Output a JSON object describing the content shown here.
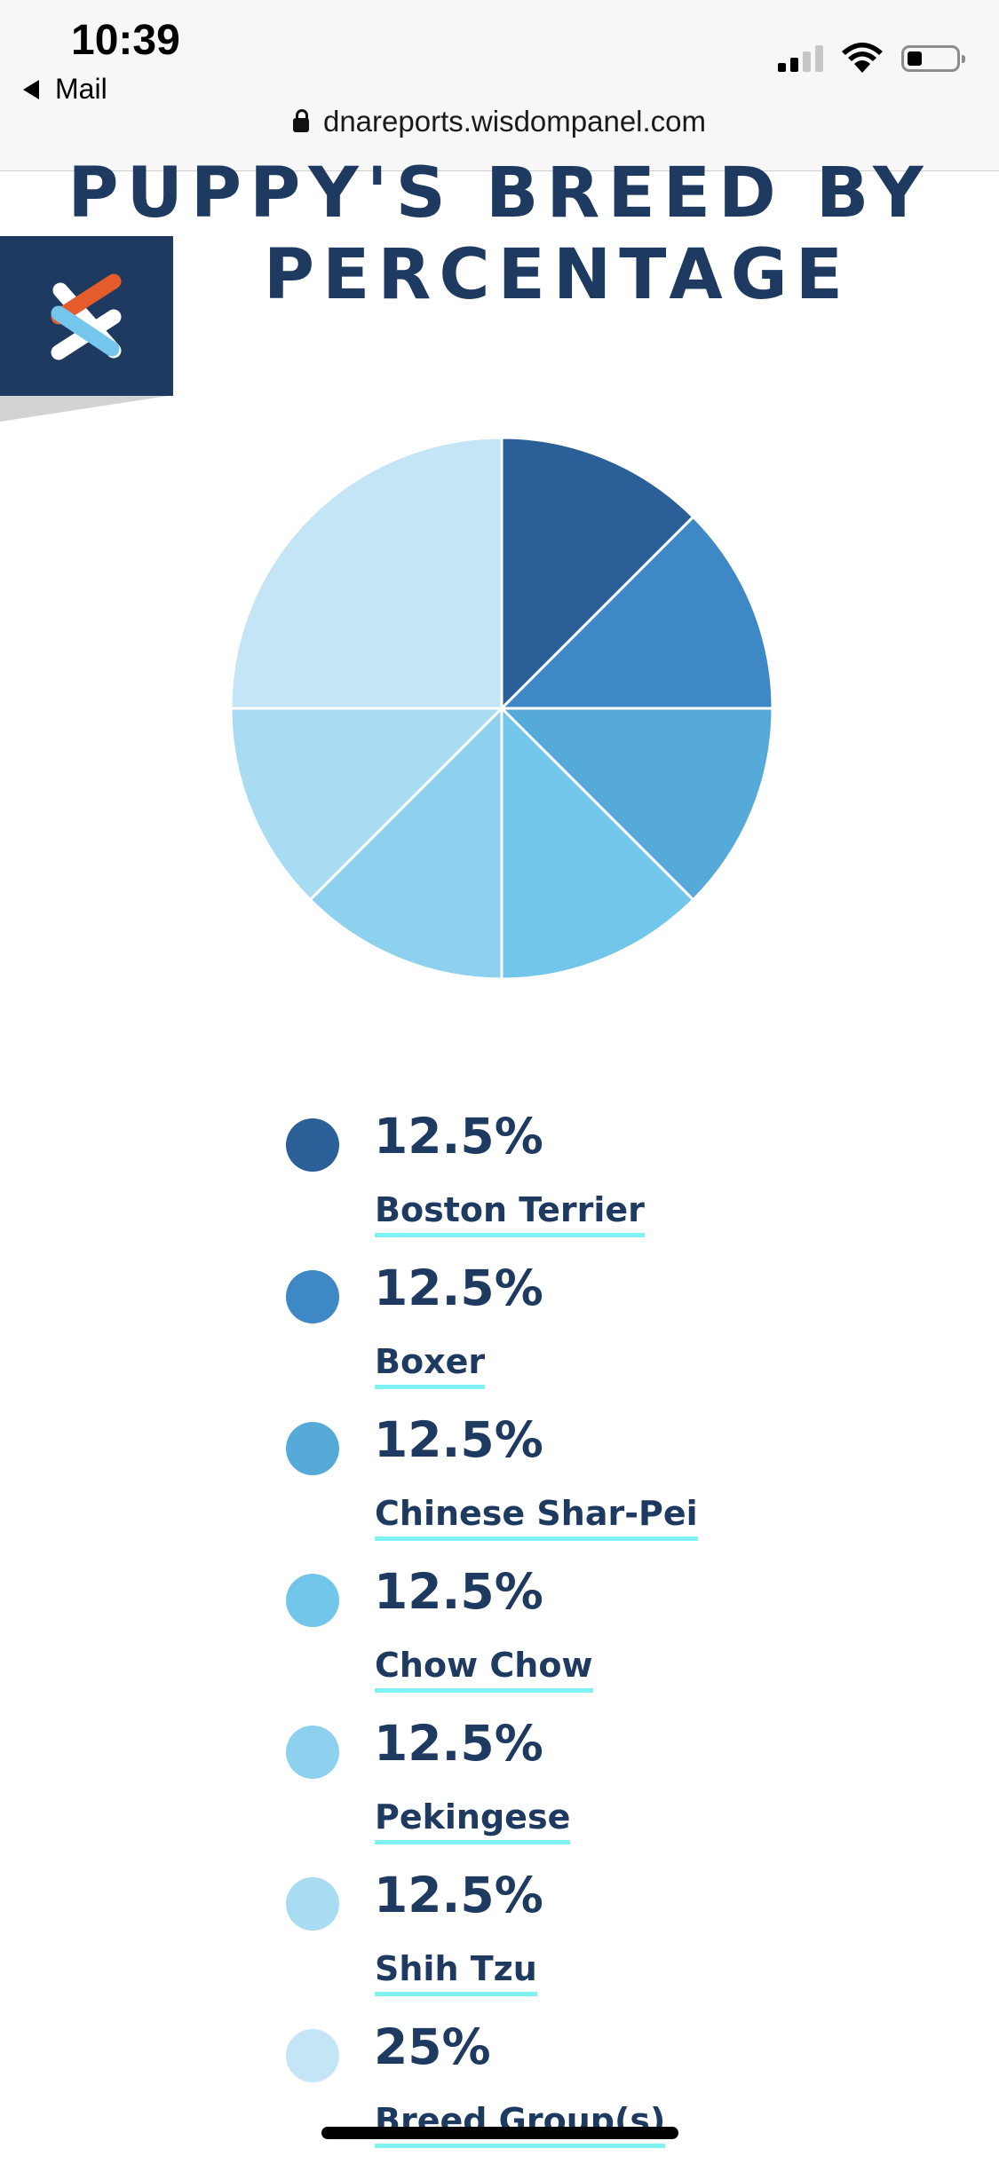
{
  "status_bar": {
    "time": "10:39",
    "back_app": "Mail",
    "icons": [
      "cellular-signal-icon",
      "wifi-icon",
      "battery-icon"
    ]
  },
  "address_bar": {
    "url": "dnareports.wisdompanel.com",
    "icon": "lock-icon"
  },
  "page": {
    "title_line1": "PUPPY'S BREED BY",
    "title_line2": "PERCENTAGE",
    "logo": "wisdom-panel-logo",
    "colors": {
      "navy": "#1e3a60",
      "underline": "#7ff3f3",
      "logo_orange": "#e45c2c",
      "logo_blue": "#74c6ec"
    }
  },
  "legend": [
    {
      "pct": "12.5%",
      "name": "Boston Terrier",
      "color": "#2b5f98"
    },
    {
      "pct": "12.5%",
      "name": "Boxer",
      "color": "#3f88c6"
    },
    {
      "pct": "12.5%",
      "name": "Chinese Shar-Pei",
      "color": "#56aada"
    },
    {
      "pct": "12.5%",
      "name": "Chow Chow",
      "color": "#72c6ea"
    },
    {
      "pct": "12.5%",
      "name": "Pekingese",
      "color": "#8ed1ee"
    },
    {
      "pct": "12.5%",
      "name": "Shih Tzu",
      "color": "#a8dcf2"
    },
    {
      "pct": "25%",
      "name": "Breed Group(s)",
      "color": "#c3e5f6"
    }
  ],
  "chart_data": {
    "type": "pie",
    "categories": [
      "Boston Terrier",
      "Boxer",
      "Chinese Shar-Pei",
      "Chow Chow",
      "Pekingese",
      "Shih Tzu",
      "Breed Group(s)"
    ],
    "values": [
      12.5,
      12.5,
      12.5,
      12.5,
      12.5,
      12.5,
      25
    ],
    "colors": [
      "#2b5f98",
      "#3f88c6",
      "#56aada",
      "#72c6ea",
      "#8ed1ee",
      "#a8dcf2",
      "#c3e5f6"
    ],
    "start_angle": "top",
    "direction": "clockwise",
    "legend_position": "below"
  }
}
